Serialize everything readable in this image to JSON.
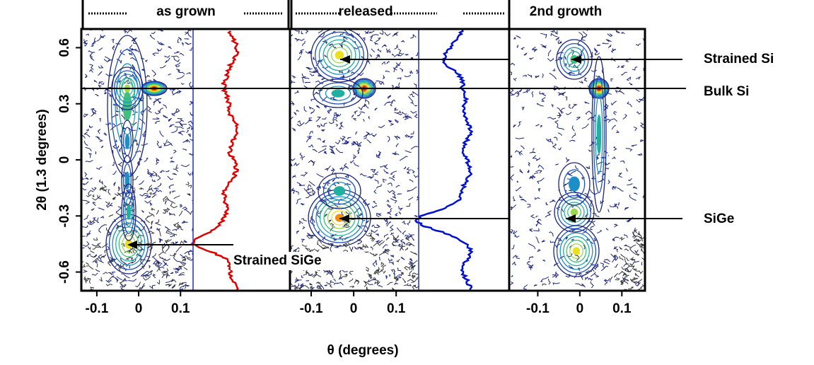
{
  "chart_data": {
    "type": "contour",
    "panels": [
      {
        "title": "as grown",
        "xlim": [
          -0.137,
          0.13
        ],
        "xticks": [
          -0.1,
          0,
          0.1
        ]
      },
      {
        "title": "released",
        "xlim": [
          -0.15,
          0.153
        ],
        "xticks": [
          -0.1,
          0,
          0.1
        ]
      },
      {
        "title": "2nd growth",
        "xlim": [
          -0.168,
          0.155
        ],
        "xticks": [
          -0.1,
          0,
          0.1
        ]
      }
    ],
    "ylim": [
      -0.7,
      0.7
    ],
    "yticks": [
      0.6,
      0.3,
      0,
      -0.3,
      -0.6
    ],
    "ylabel": "2θ (1.3 degrees)",
    "xlabel": "θ (degrees)",
    "annotations": [
      "Strained Si",
      "Bulk Si",
      "SiGe",
      "Strained SiGe"
    ]
  }
}
